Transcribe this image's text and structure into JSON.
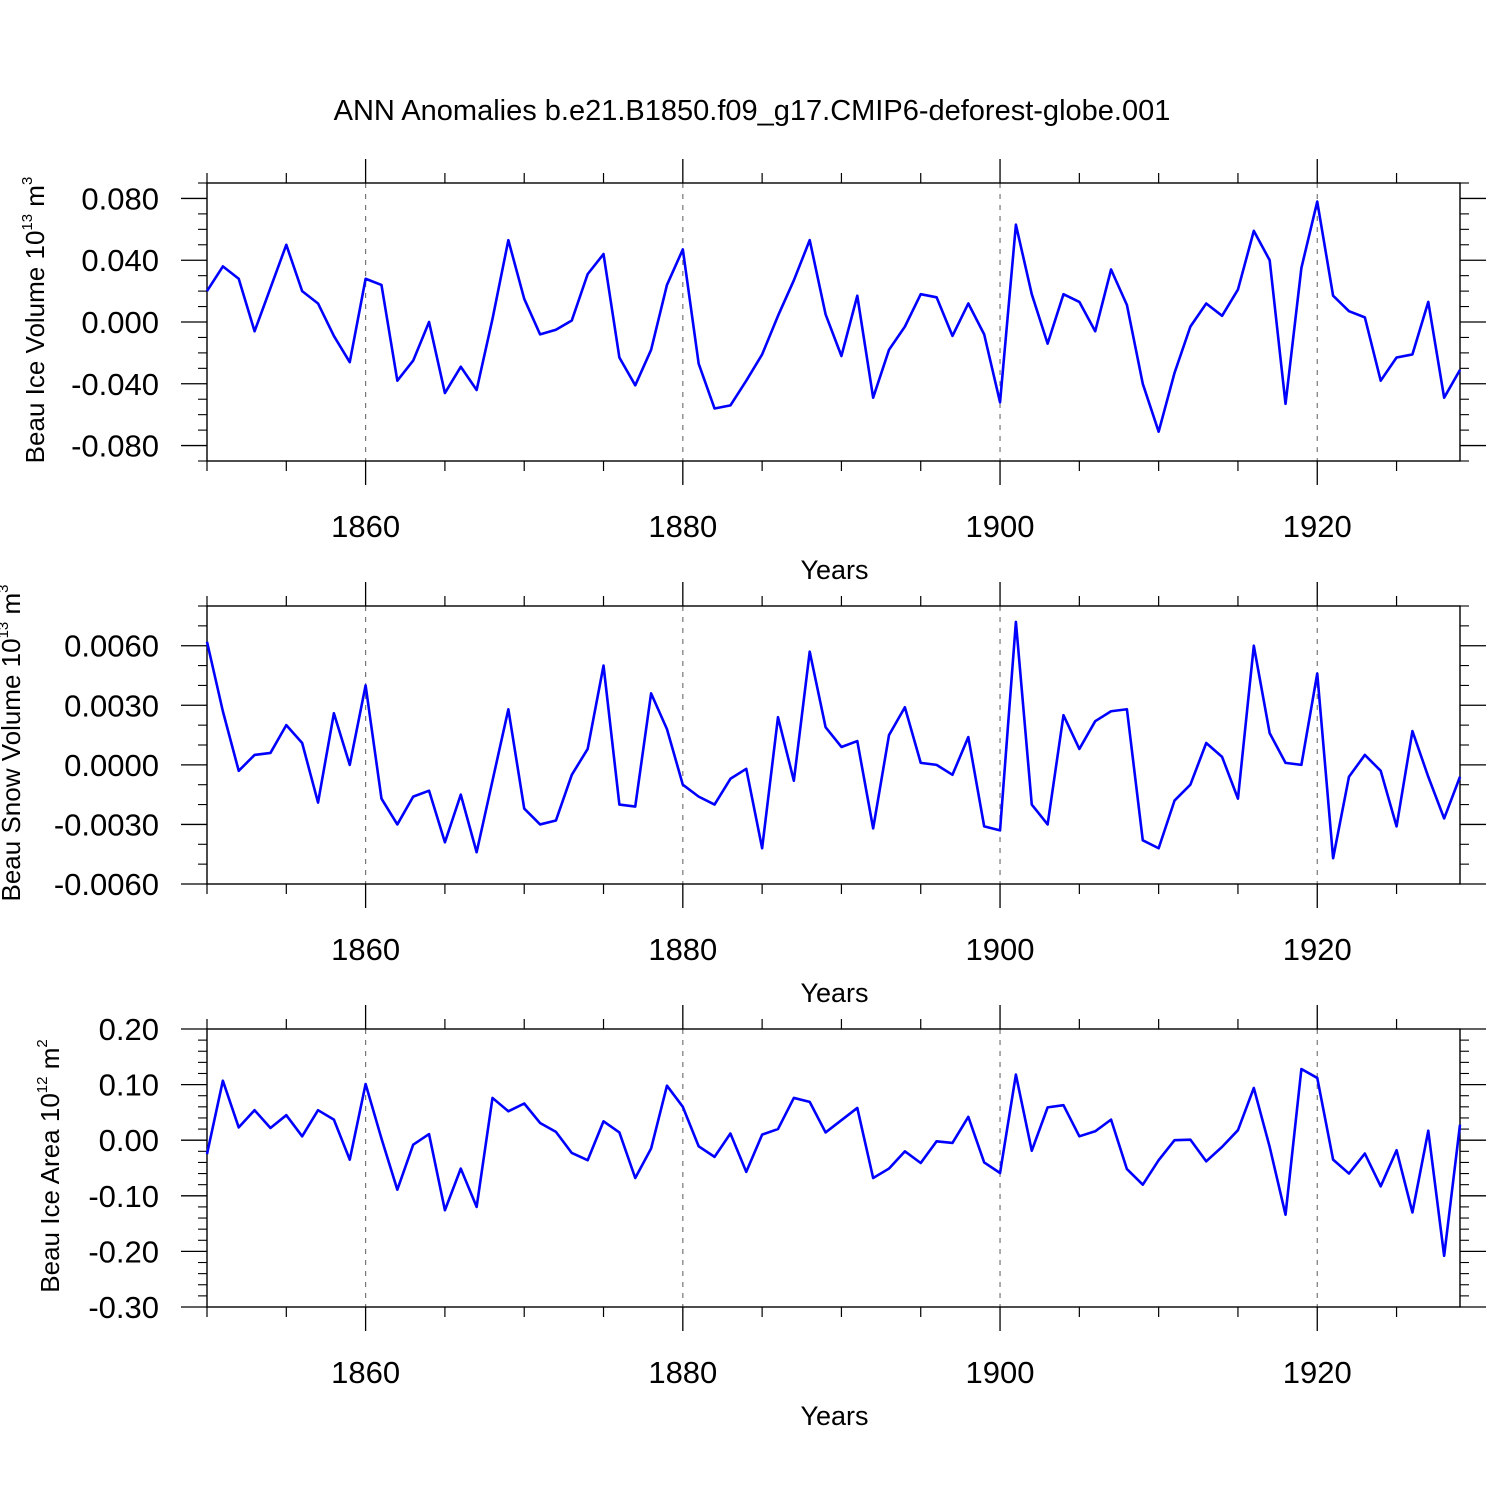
{
  "title": "ANN Anomalies b.e21.B1850.f09_g17.CMIP6-deforest-globe.001",
  "chart_data": [
    {
      "type": "line",
      "xlabel": "Years",
      "ylabel": {
        "main": "Beau Ice Volume 10",
        "exp": "13",
        "unit": " m",
        "unit_exp": "3"
      },
      "xlim": [
        1850,
        1929
      ],
      "ylim": [
        -0.09,
        0.09
      ],
      "xticks": [
        1860,
        1880,
        1900,
        1920
      ],
      "xtick_labels": [
        "1860",
        "1880",
        "1900",
        "1920"
      ],
      "yticks": [
        0.08,
        0.04,
        0.0,
        -0.04,
        -0.08
      ],
      "ytick_labels": [
        "0.080",
        "0.040",
        "0.000",
        "-0.040",
        "-0.080"
      ],
      "yminor_step": 0.01,
      "color": "#0000ff",
      "grid": "dashed vertical at major x ticks",
      "x_start": 1850,
      "values": [
        0.02,
        0.036,
        0.028,
        -0.006,
        0.022,
        0.05,
        0.02,
        0.012,
        -0.009,
        -0.026,
        0.028,
        0.024,
        -0.038,
        -0.025,
        0.0,
        -0.046,
        -0.029,
        -0.044,
        0.002,
        0.053,
        0.015,
        -0.008,
        -0.005,
        0.001,
        0.031,
        0.044,
        -0.023,
        -0.041,
        -0.018,
        0.024,
        0.047,
        -0.027,
        -0.056,
        -0.054,
        -0.038,
        -0.021,
        0.004,
        0.027,
        0.053,
        0.005,
        -0.022,
        0.017,
        -0.049,
        -0.018,
        -0.003,
        0.018,
        0.016,
        -0.009,
        0.012,
        -0.008,
        -0.052,
        0.063,
        0.018,
        -0.014,
        0.018,
        0.013,
        -0.006,
        0.034,
        0.011,
        -0.04,
        -0.071,
        -0.033,
        -0.003,
        0.012,
        0.004,
        0.021,
        0.059,
        0.04,
        -0.053,
        0.035,
        0.078,
        0.017,
        0.007,
        0.003,
        -0.038,
        -0.023,
        -0.021,
        0.013,
        -0.049,
        -0.031
      ]
    },
    {
      "type": "line",
      "xlabel": "Years",
      "ylabel": {
        "main": "Beau Snow Volume 10",
        "exp": "13",
        "unit": " m",
        "unit_exp": "3"
      },
      "xlim": [
        1850,
        1929
      ],
      "ylim": [
        -0.006,
        0.008
      ],
      "xticks": [
        1860,
        1880,
        1900,
        1920
      ],
      "xtick_labels": [
        "1860",
        "1880",
        "1900",
        "1920"
      ],
      "yticks": [
        0.006,
        0.003,
        0.0,
        -0.003,
        -0.006
      ],
      "ytick_labels": [
        "0.0060",
        "0.0030",
        "0.0000",
        "-0.0030",
        "-0.0060"
      ],
      "yminor_step": 0.001,
      "color": "#0000ff",
      "grid": "dashed vertical at major x ticks",
      "x_start": 1850,
      "values": [
        0.0062,
        0.0027,
        -0.0003,
        0.0005,
        0.0006,
        0.002,
        0.0011,
        -0.0019,
        0.0026,
        0.0,
        0.004,
        -0.0017,
        -0.003,
        -0.0016,
        -0.0013,
        -0.0039,
        -0.0015,
        -0.0044,
        -0.0008,
        0.0028,
        -0.0022,
        -0.003,
        -0.0028,
        -0.0005,
        0.0008,
        0.005,
        -0.002,
        -0.0021,
        0.0036,
        0.0018,
        -0.001,
        -0.0016,
        -0.002,
        -0.0007,
        -0.0002,
        -0.0042,
        0.0024,
        -0.0008,
        0.0057,
        0.0019,
        0.0009,
        0.0012,
        -0.0032,
        0.0015,
        0.0029,
        0.0001,
        0.0,
        -0.0005,
        0.0014,
        -0.0031,
        -0.0033,
        0.0072,
        -0.002,
        -0.003,
        0.0025,
        0.0008,
        0.0022,
        0.0027,
        0.0028,
        -0.0038,
        -0.0042,
        -0.0018,
        -0.001,
        0.0011,
        0.0004,
        -0.0017,
        0.006,
        0.0016,
        0.0001,
        0.0,
        0.0046,
        -0.0047,
        -0.0006,
        0.0005,
        -0.0003,
        -0.0031,
        0.0017,
        -0.0006,
        -0.0027,
        -0.0006
      ]
    },
    {
      "type": "line",
      "xlabel": "Years",
      "ylabel": {
        "main": "Beau Ice Area 10",
        "exp": "12",
        "unit": " m",
        "unit_exp": "2"
      },
      "xlim": [
        1850,
        1929
      ],
      "ylim": [
        -0.3,
        0.2
      ],
      "xticks": [
        1860,
        1880,
        1900,
        1920
      ],
      "xtick_labels": [
        "1860",
        "1880",
        "1900",
        "1920"
      ],
      "yticks": [
        0.2,
        0.1,
        0.0,
        -0.1,
        -0.2,
        -0.3
      ],
      "ytick_labels": [
        "0.20",
        "0.10",
        "0.00",
        "-0.10",
        "-0.20",
        "-0.30"
      ],
      "yminor_step": 0.02,
      "color": "#0000ff",
      "grid": "dashed vertical at major x ticks",
      "x_start": 1850,
      "values": [
        -0.025,
        0.107,
        0.023,
        0.054,
        0.022,
        0.045,
        0.007,
        0.054,
        0.037,
        -0.035,
        0.101,
        0.003,
        -0.089,
        -0.008,
        0.011,
        -0.126,
        -0.051,
        -0.12,
        0.076,
        0.052,
        0.066,
        0.031,
        0.015,
        -0.023,
        -0.036,
        0.034,
        0.014,
        -0.068,
        -0.015,
        0.098,
        0.06,
        -0.011,
        -0.03,
        0.012,
        -0.057,
        0.01,
        0.02,
        0.076,
        0.069,
        0.014,
        0.036,
        0.058,
        -0.068,
        -0.051,
        -0.02,
        -0.041,
        -0.002,
        -0.005,
        0.042,
        -0.04,
        -0.059,
        0.118,
        -0.019,
        0.059,
        0.063,
        0.007,
        0.016,
        0.037,
        -0.052,
        -0.08,
        -0.036,
        0.0,
        0.001,
        -0.038,
        -0.012,
        0.018,
        0.094,
        -0.012,
        -0.134,
        0.128,
        0.112,
        -0.035,
        -0.06,
        -0.024,
        -0.083,
        -0.018,
        -0.13,
        0.017,
        -0.208,
        0.028
      ]
    }
  ]
}
